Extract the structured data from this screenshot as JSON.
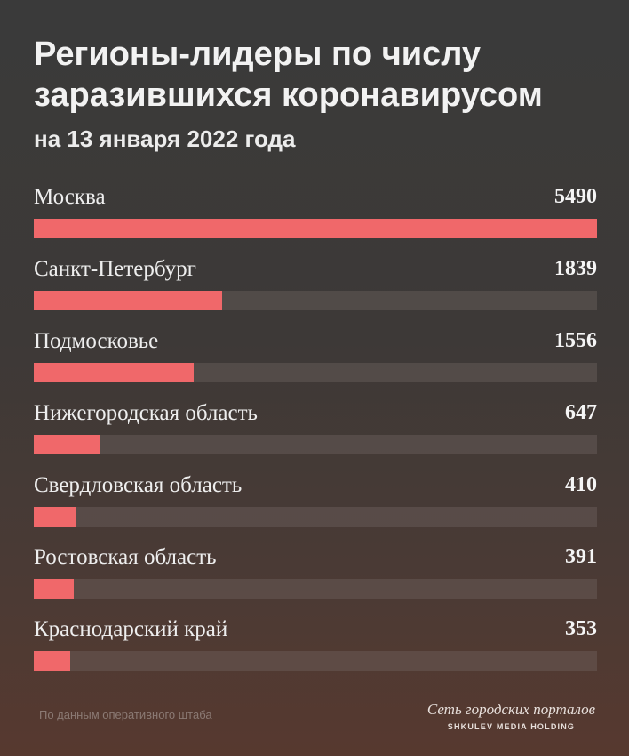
{
  "chart_data": {
    "type": "bar",
    "title": "Регионы-лидеры по числу заразившихся коронавирусом",
    "subtitle": "на 13 января 2022 года",
    "categories": [
      "Москва",
      "Санкт-Петербург",
      "Подмосковье",
      "Нижегородская область",
      "Свердловская область",
      "Ростовская область",
      "Краснодарский край"
    ],
    "values": [
      5490,
      1839,
      1556,
      647,
      410,
      391,
      353
    ],
    "ylim": [
      0,
      5490
    ],
    "orientation": "horizontal",
    "bar_color": "#f0686a",
    "track_color": "#5a504c",
    "grid": false
  },
  "footer": {
    "source": "По данным оперативного штаба",
    "brand_line1": "Сеть городских порталов",
    "brand_line2": "SHKULEV MEDIA HOLDING"
  }
}
